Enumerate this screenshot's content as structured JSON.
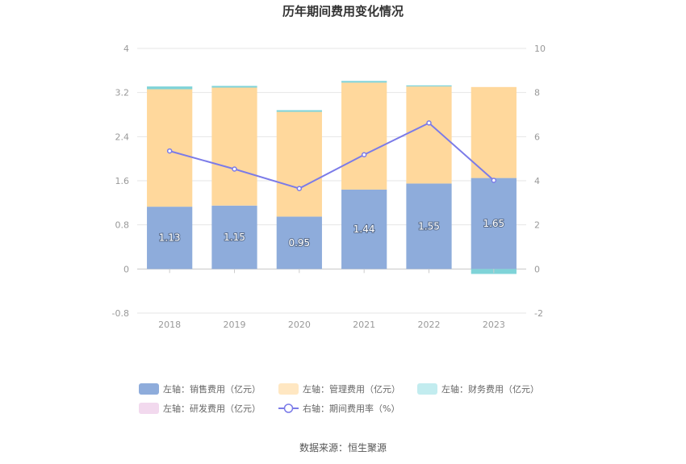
{
  "chart_data": {
    "type": "bar",
    "title": "历年期间费用变化情况",
    "categories": [
      "2018",
      "2019",
      "2020",
      "2021",
      "2022",
      "2023"
    ],
    "series": [
      {
        "name": "左轴：销售费用（亿元）",
        "axis": "left",
        "stack": "cost",
        "color": "#8eacdb",
        "values": [
          1.13,
          1.15,
          0.95,
          1.44,
          1.55,
          1.65
        ],
        "show_labels": true
      },
      {
        "name": "左轴：管理费用（亿元）",
        "axis": "left",
        "stack": "cost",
        "color": "#ffd89c",
        "values": [
          2.13,
          2.14,
          1.9,
          1.94,
          1.76,
          1.65
        ]
      },
      {
        "name": "左轴：财务费用（亿元）",
        "axis": "left",
        "stack": "cost",
        "color": "#7fd3d8",
        "values": [
          0.05,
          0.03,
          0.03,
          0.03,
          0.02,
          -0.09
        ]
      },
      {
        "name": "左轴：研发费用（亿元）",
        "axis": "left",
        "stack": "cost",
        "color": "#f2d9ee",
        "values": [
          0,
          0,
          0,
          0,
          0,
          0
        ]
      },
      {
        "name": "右轴：期间费用率（%）",
        "axis": "right",
        "type": "line",
        "color": "#7b7be8",
        "values": [
          5.35,
          4.53,
          3.65,
          5.18,
          6.62,
          4.02
        ]
      }
    ],
    "left_axis": {
      "min": -0.8,
      "max": 4,
      "ticks": [
        "-0.8",
        "0",
        "0.8",
        "1.6",
        "2.4",
        "3.2",
        "4"
      ]
    },
    "right_axis": {
      "min": -2,
      "max": 10,
      "ticks": [
        "-2",
        "0",
        "2",
        "4",
        "6",
        "8",
        "10"
      ]
    },
    "grid": true,
    "legend_position": "bottom"
  },
  "source": "数据来源：恒生聚源"
}
